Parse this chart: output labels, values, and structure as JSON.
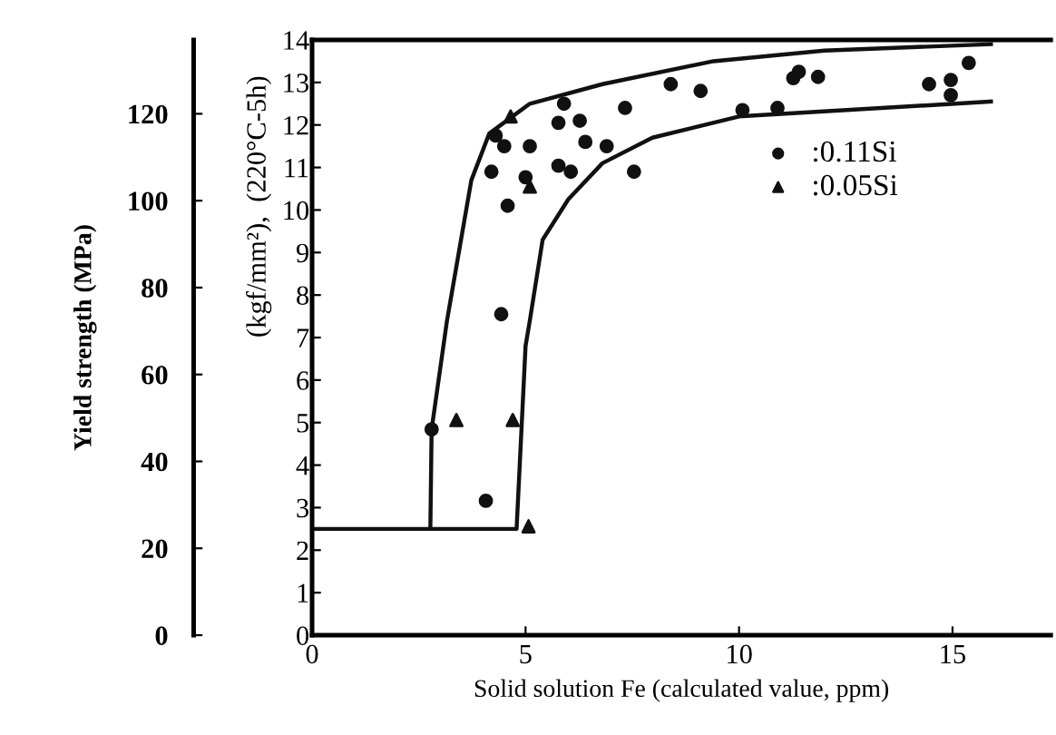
{
  "chart_data": {
    "type": "scatter",
    "xlabel": "Solid solution Fe (calculated value, ppm)",
    "ylabel": "(kgf/mm²),  (220°C-5h)",
    "y2label": "Yield strength (MPa)",
    "xlim": [
      0,
      17.3
    ],
    "xticks": [
      0,
      5,
      10,
      15
    ],
    "ylim": [
      0,
      14
    ],
    "yticks": [
      0,
      1,
      2,
      3,
      4,
      5,
      6,
      7,
      8,
      9,
      10,
      11,
      12,
      13,
      14
    ],
    "y2lim": [
      0,
      137
    ],
    "y2ticks": [
      0,
      20,
      40,
      60,
      80,
      100,
      120
    ],
    "grid": false,
    "legend": "right",
    "series": [
      {
        "name": ":0.11Si",
        "color": "#111111",
        "marker": "circle",
        "x": [
          8.4,
          9.1,
          7.33,
          5.9,
          4.3,
          4.5,
          5.1,
          5.77,
          6.27,
          6.4,
          6.9,
          4.2,
          5.0,
          5.77,
          6.06,
          7.54,
          4.58,
          4.43,
          2.8,
          4.07,
          11.27,
          11.4,
          11.85,
          10.08,
          10.9,
          14.45,
          14.96,
          15.38,
          14.96
        ],
        "values": [
          12.96,
          12.8,
          12.4,
          12.5,
          11.75,
          11.5,
          11.5,
          12.05,
          12.1,
          11.6,
          11.5,
          10.9,
          10.77,
          11.04,
          10.9,
          10.9,
          10.1,
          7.55,
          4.84,
          3.16,
          13.1,
          13.25,
          13.13,
          12.35,
          12.4,
          12.96,
          13.06,
          13.46,
          12.7
        ]
      },
      {
        "name": ":0.05Si",
        "color": "#111111",
        "marker": "triangle",
        "x": [
          4.65,
          5.1,
          3.38,
          4.7,
          5.07
        ],
        "values": [
          12.2,
          10.55,
          5.06,
          5.06,
          2.56
        ]
      },
      {
        "type": "line",
        "color": "#111111",
        "marker": "none",
        "x": [
          0,
          2.77,
          2.8,
          3.16,
          3.73,
          4.15,
          5.1,
          6.8,
          9.4,
          12.0,
          15.9
        ],
        "values": [
          2.5,
          2.5,
          4.84,
          7.4,
          10.7,
          11.8,
          12.5,
          12.96,
          13.5,
          13.75,
          13.9
        ]
      },
      {
        "type": "line",
        "color": "#111111",
        "marker": "none",
        "x": [
          2.77,
          4.79,
          5.0,
          5.1,
          5.4,
          6.0,
          6.8,
          7.97,
          10.0,
          15.9
        ],
        "values": [
          2.5,
          2.5,
          6.8,
          7.4,
          9.3,
          10.25,
          11.1,
          11.7,
          12.2,
          12.55
        ]
      }
    ]
  }
}
